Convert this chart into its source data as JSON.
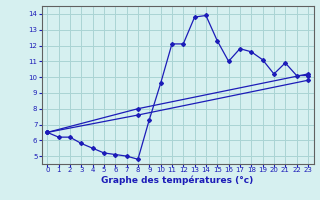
{
  "xlabel": "Graphe des températures (°c)",
  "xlim": [
    -0.5,
    23.5
  ],
  "ylim": [
    4.5,
    14.5
  ],
  "yticks": [
    5,
    6,
    7,
    8,
    9,
    10,
    11,
    12,
    13,
    14
  ],
  "xticks": [
    0,
    1,
    2,
    3,
    4,
    5,
    6,
    7,
    8,
    9,
    10,
    11,
    12,
    13,
    14,
    15,
    16,
    17,
    18,
    19,
    20,
    21,
    22,
    23
  ],
  "bg_color": "#d6f0f0",
  "grid_color": "#aad4d4",
  "line_color": "#1c1cb8",
  "line1_x": [
    0,
    1,
    2,
    3,
    4,
    5,
    6,
    7,
    8,
    9,
    10,
    11,
    12,
    13,
    14,
    15,
    16,
    17,
    18,
    19,
    20,
    21,
    22,
    23
  ],
  "line1_y": [
    6.5,
    6.2,
    6.2,
    5.8,
    5.5,
    5.2,
    5.1,
    5.0,
    4.8,
    7.3,
    9.6,
    12.1,
    12.1,
    13.8,
    13.9,
    12.3,
    11.0,
    11.8,
    11.6,
    11.1,
    10.2,
    10.9,
    10.1,
    10.1
  ],
  "line2_x": [
    0,
    8,
    23
  ],
  "line2_y": [
    6.5,
    8.0,
    10.2
  ],
  "line3_x": [
    0,
    8,
    23
  ],
  "line3_y": [
    6.5,
    7.6,
    9.8
  ],
  "figsize": [
    3.2,
    2.0
  ],
  "dpi": 100
}
